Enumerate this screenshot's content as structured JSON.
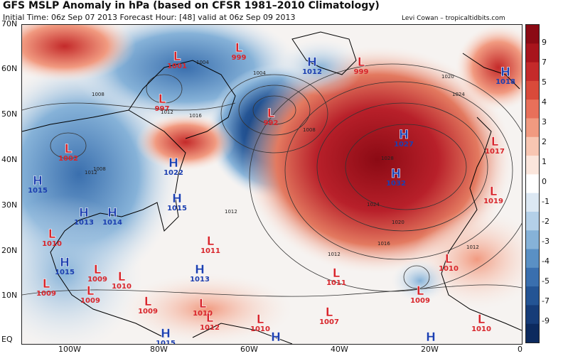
{
  "title": "GFS MSLP Anomaly in hPa (based on CFSR 1981–2010 Climatology)",
  "subtitle": "Initial Time: 06z Sep 07 2013 Forecast Hour: [48] valid at 06z Sep 09 2013",
  "credit": "Levi Cowan – tropicaltidbits.com",
  "colors": {
    "low": "#d8252b",
    "high": "#1c3fb0"
  },
  "colorbar": {
    "labels": [
      "9",
      "7",
      "5",
      "4",
      "3",
      "2",
      "1",
      "0",
      "-1",
      "-2",
      "-3",
      "-4",
      "-5",
      "-7",
      "-9"
    ],
    "colors": [
      "#8b0a14",
      "#a8141c",
      "#c42a2a",
      "#d94a3a",
      "#e8705a",
      "#f19a80",
      "#f8c6b2",
      "#fbe6dc",
      "#ffffff",
      "#dce8f3",
      "#b4d0e8",
      "#86b2d8",
      "#5a90c4",
      "#3a6fae",
      "#245494",
      "#163c78",
      "#0c2a5e"
    ]
  },
  "lat_labels": [
    "70N",
    "60N",
    "50N",
    "40N",
    "30N",
    "20N",
    "10N",
    "EQ"
  ],
  "lon_labels": [
    "100W",
    "80W",
    "60W",
    "40W",
    "20W",
    "0"
  ],
  "centers": [
    {
      "type": "L",
      "value": "1001"
    },
    {
      "type": "L",
      "value": "999"
    },
    {
      "type": "H",
      "value": "1012"
    },
    {
      "type": "L",
      "value": "999"
    },
    {
      "type": "H",
      "value": "1018"
    },
    {
      "type": "L",
      "value": "997"
    },
    {
      "type": "L",
      "value": "992"
    },
    {
      "type": "H",
      "value": "1027"
    },
    {
      "type": "L",
      "value": "1017"
    },
    {
      "type": "L",
      "value": "1002"
    },
    {
      "type": "H",
      "value": "1022"
    },
    {
      "type": "H",
      "value": "1032"
    },
    {
      "type": "H",
      "value": "1015"
    },
    {
      "type": "H",
      "value": "1015"
    },
    {
      "type": "L",
      "value": "1019"
    },
    {
      "type": "H",
      "value": "1013"
    },
    {
      "type": "H",
      "value": "1014"
    },
    {
      "type": "L",
      "value": "1010"
    },
    {
      "type": "L",
      "value": "1011"
    },
    {
      "type": "H",
      "value": "1015"
    },
    {
      "type": "L",
      "value": "1009"
    },
    {
      "type": "L",
      "value": "1009"
    },
    {
      "type": "H",
      "value": "1013"
    },
    {
      "type": "L",
      "value": "1011"
    },
    {
      "type": "L",
      "value": "1010"
    },
    {
      "type": "L",
      "value": "1009"
    },
    {
      "type": "L",
      "value": "1009"
    },
    {
      "type": "L",
      "value": "1010"
    },
    {
      "type": "L",
      "value": "1009"
    },
    {
      "type": "L",
      "value": "1007"
    },
    {
      "type": "L",
      "value": "1012"
    },
    {
      "type": "L",
      "value": "1010"
    },
    {
      "type": "L",
      "value": "1010"
    },
    {
      "type": "H",
      "value": "1015"
    },
    {
      "type": "L",
      "value": "1010"
    },
    {
      "type": "H",
      "value": "1012"
    },
    {
      "type": "H",
      "value": "1014"
    }
  ],
  "isobar_labels": [
    "1008",
    "1008",
    "1004",
    "1004",
    "1008",
    "1012",
    "1016",
    "1020",
    "1024",
    "1028",
    "1024",
    "1020",
    "1016",
    "1012",
    "1012",
    "1012",
    "1012"
  ]
}
